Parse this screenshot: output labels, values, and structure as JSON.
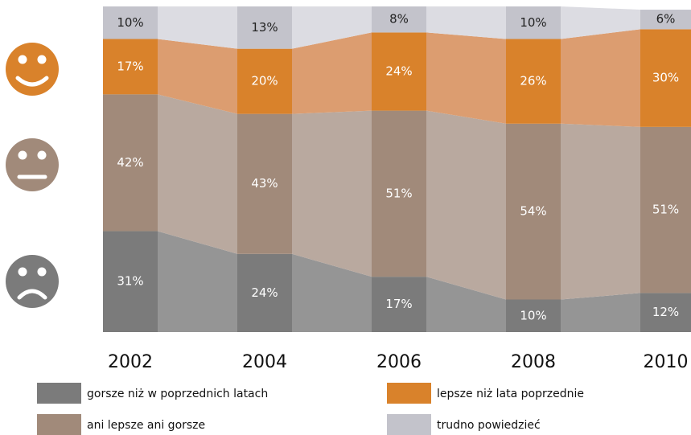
{
  "chart_data": {
    "type": "bar",
    "stacked": true,
    "categories": [
      "2002",
      "2004",
      "2006",
      "2008",
      "2010"
    ],
    "ylim": [
      0,
      100
    ],
    "series": [
      {
        "name": "gorsze niż w poprzednich latach",
        "color": "#7b7b7b",
        "band_color": "#959595",
        "label_color": "#ffffff",
        "values": [
          31,
          24,
          17,
          10,
          12
        ],
        "value_labels": [
          "31%",
          "24%",
          "17%",
          "10%",
          "12%"
        ]
      },
      {
        "name": "ani lepsze ani gorsze",
        "color": "#a18a7a",
        "band_color": "#b9a99f",
        "label_color": "#ffffff",
        "values": [
          42,
          43,
          51,
          54,
          51
        ],
        "value_labels": [
          "42%",
          "43%",
          "51%",
          "54%",
          "51%"
        ]
      },
      {
        "name": "lepsze niż lata poprzednie",
        "color": "#d9822b",
        "band_color": "#dc9d70",
        "label_color": "#ffffff",
        "values": [
          17,
          20,
          24,
          26,
          30
        ],
        "value_labels": [
          "17%",
          "20%",
          "24%",
          "26%",
          "30%"
        ]
      },
      {
        "name": "trudno powiedzieć",
        "color": "#c3c3cb",
        "band_color": "#dcdce2",
        "label_color": "#222222",
        "values": [
          10,
          13,
          8,
          10,
          6
        ],
        "value_labels": [
          "10%",
          "13%",
          "8%",
          "10%",
          "6%"
        ]
      }
    ]
  }
}
